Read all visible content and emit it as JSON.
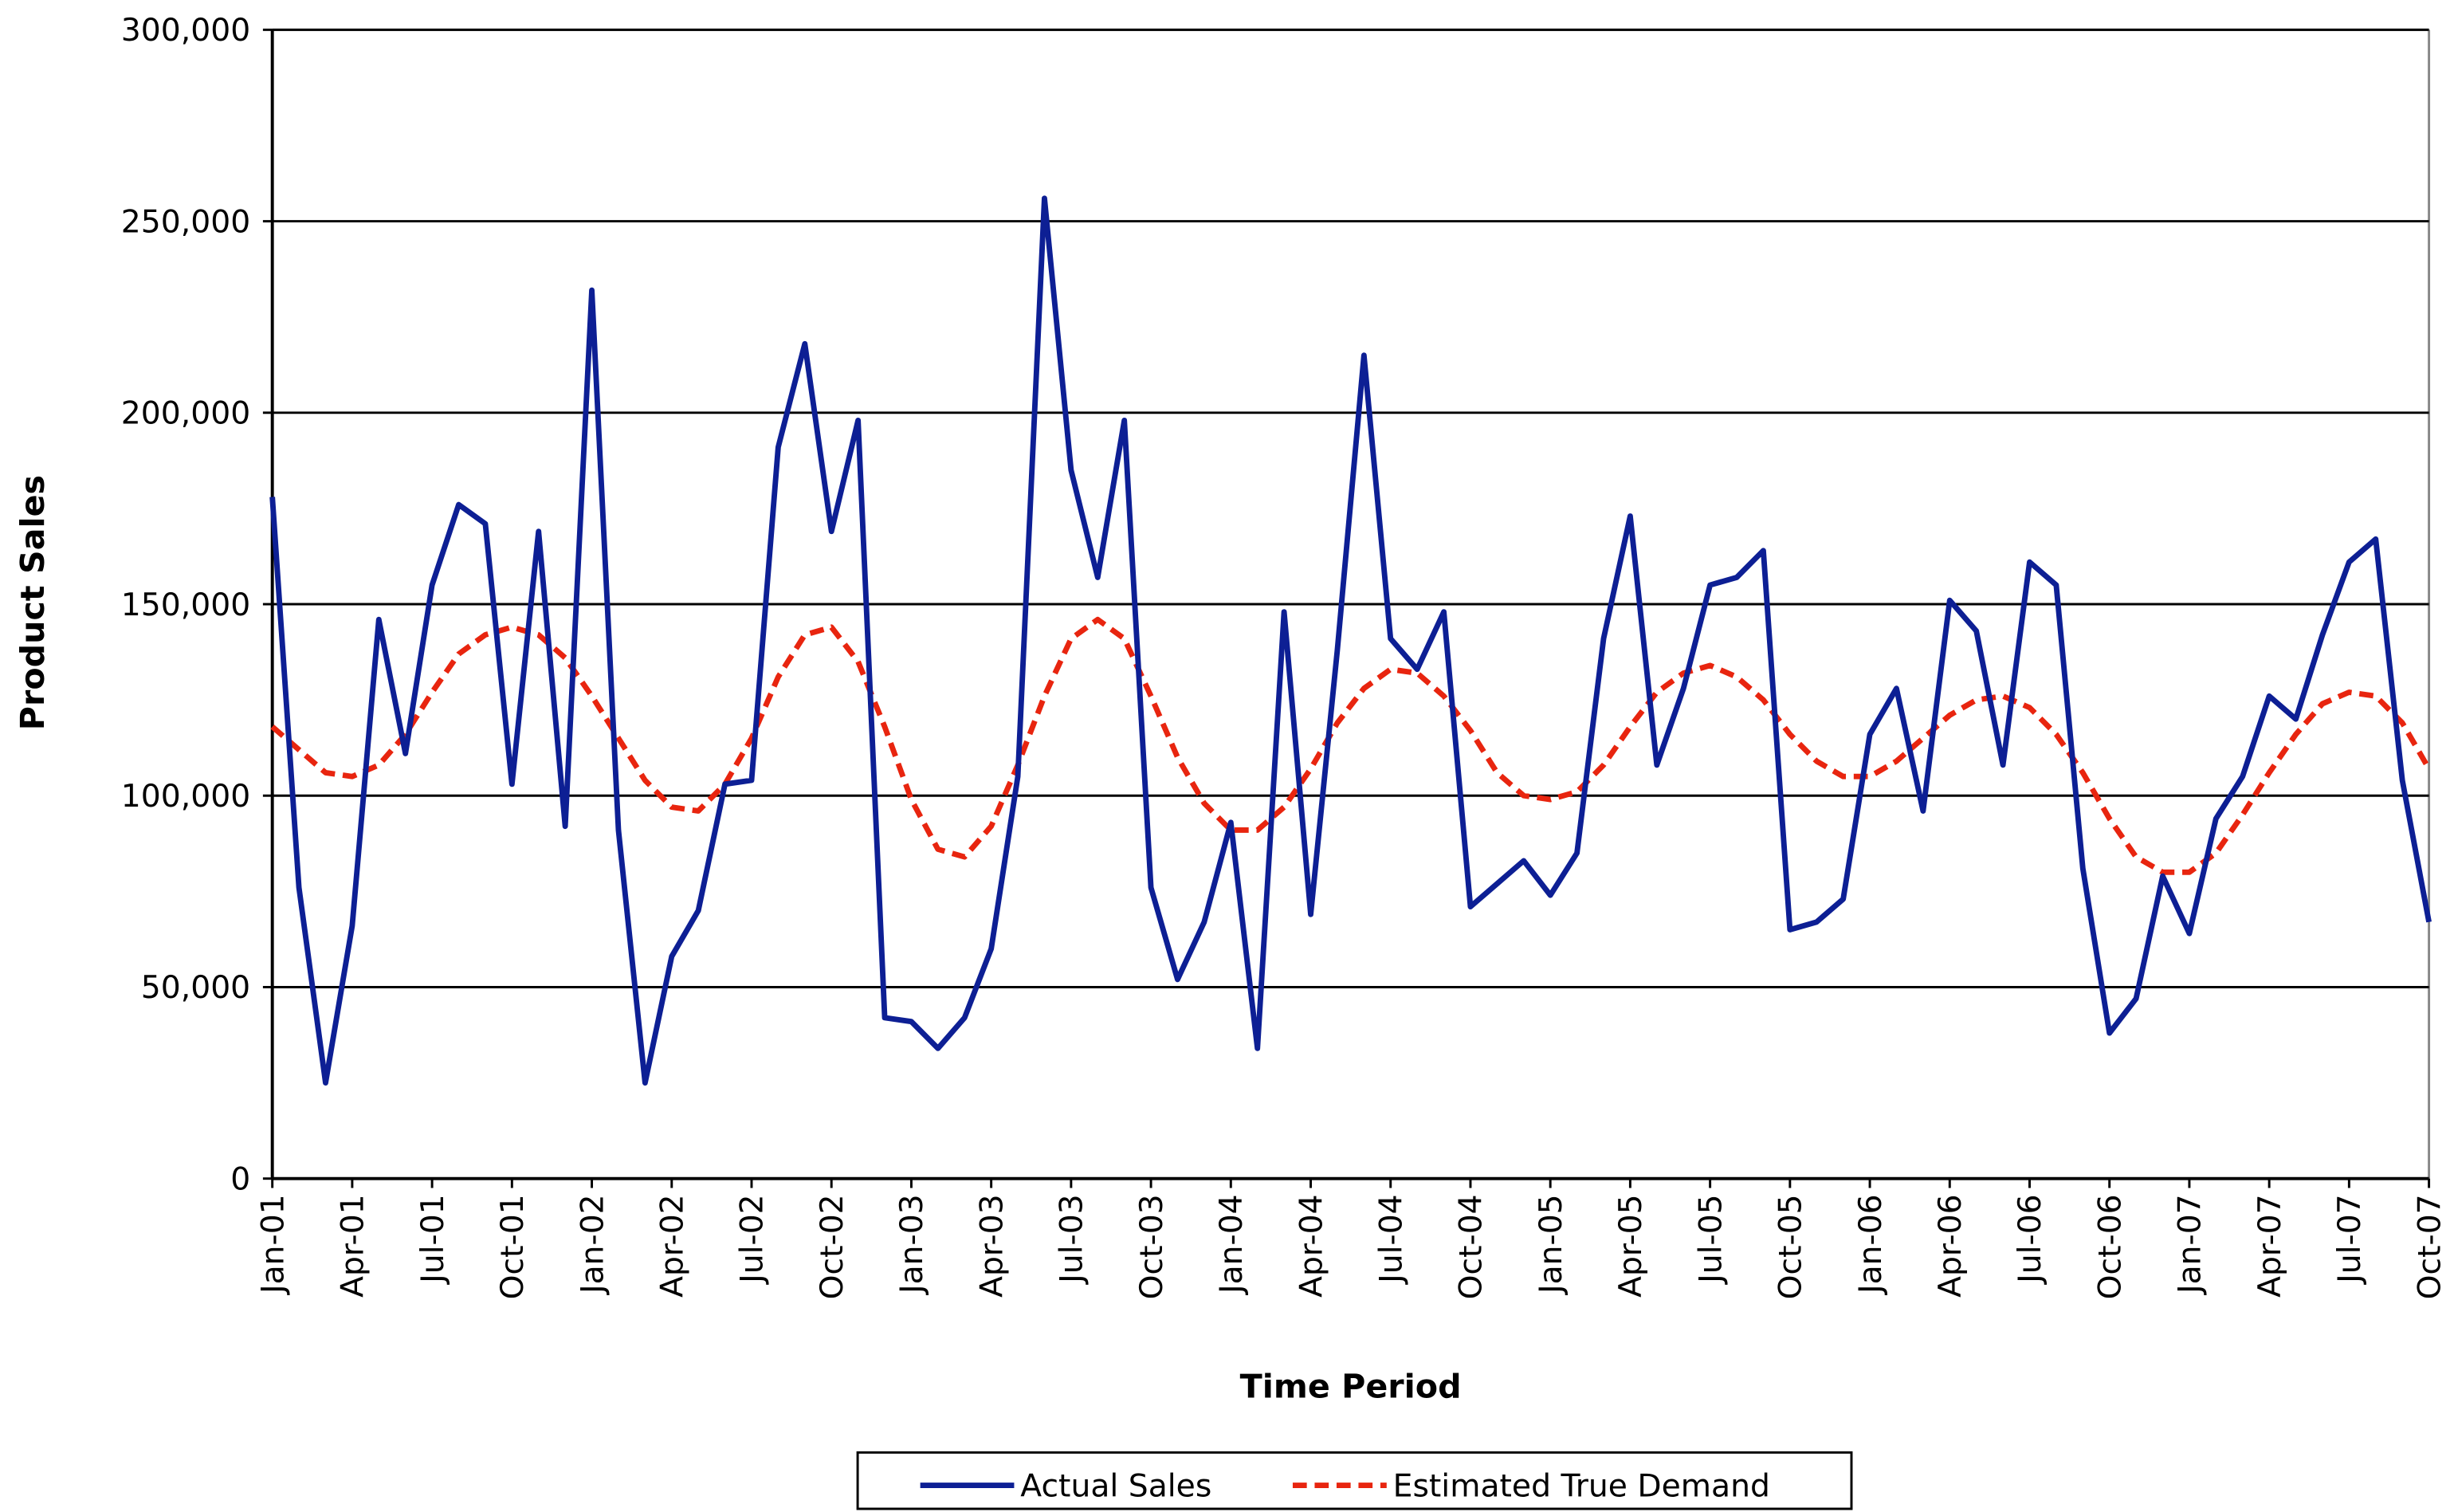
{
  "chart_data": {
    "type": "line",
    "xlabel": "Time Period",
    "ylabel": "Product Sales",
    "categories": [
      "Jan-01",
      null,
      null,
      "Apr-01",
      null,
      null,
      "Jul-01",
      null,
      null,
      "Oct-01",
      null,
      null,
      "Jan-02",
      null,
      null,
      "Apr-02",
      null,
      null,
      "Jul-02",
      null,
      null,
      "Oct-02",
      null,
      null,
      "Jan-03",
      null,
      null,
      "Apr-03",
      null,
      null,
      "Jul-03",
      null,
      null,
      "Oct-03",
      null,
      null,
      "Jan-04",
      null,
      null,
      "Apr-04",
      null,
      null,
      "Jul-04",
      null,
      null,
      "Oct-04",
      null,
      null,
      "Jan-05",
      null,
      null,
      "Apr-05",
      null,
      null,
      "Jul-05",
      null,
      null,
      "Oct-05",
      null,
      null,
      "Jan-06",
      null,
      null,
      "Apr-06",
      null,
      null,
      "Jul-06",
      null,
      null,
      "Oct-06",
      null,
      null,
      "Jan-07",
      null,
      null,
      "Apr-07",
      null,
      null,
      "Jul-07",
      null,
      null,
      "Oct-07"
    ],
    "series": [
      {
        "name": "Actual Sales",
        "color": "#0d1f94",
        "dash": false,
        "values": [
          178000,
          76000,
          25000,
          66000,
          146000,
          111000,
          155000,
          176000,
          171000,
          103000,
          169000,
          92000,
          232000,
          91000,
          25000,
          58000,
          70000,
          103000,
          104000,
          191000,
          218000,
          169000,
          198000,
          42000,
          41000,
          34000,
          42000,
          60000,
          105000,
          256000,
          185000,
          157000,
          198000,
          76000,
          52000,
          67000,
          93000,
          34000,
          148000,
          69000,
          138000,
          215000,
          141000,
          133000,
          148000,
          71000,
          77000,
          83000,
          74000,
          85000,
          141000,
          173000,
          108000,
          128000,
          155000,
          157000,
          164000,
          65000,
          67000,
          73000,
          116000,
          128000,
          96000,
          151000,
          143000,
          108000,
          161000,
          155000,
          81000,
          38000,
          47000,
          79000,
          64000,
          94000,
          105000,
          126000,
          120000,
          142000,
          161000,
          167000,
          104000,
          67000
        ]
      },
      {
        "name": "Estimated True Demand",
        "color": "#e8250f",
        "dash": true,
        "values": [
          118000,
          112000,
          106000,
          105000,
          108000,
          116000,
          127000,
          137000,
          142000,
          144000,
          142000,
          136000,
          126000,
          115000,
          104000,
          97000,
          96000,
          103000,
          115000,
          131000,
          142000,
          144000,
          135000,
          118000,
          99000,
          86000,
          84000,
          92000,
          108000,
          126000,
          141000,
          146000,
          141000,
          126000,
          110000,
          98000,
          91000,
          91000,
          97000,
          107000,
          119000,
          128000,
          133000,
          132000,
          126000,
          117000,
          106000,
          100000,
          99000,
          101000,
          108000,
          118000,
          127000,
          132000,
          134000,
          131000,
          125000,
          116000,
          109000,
          105000,
          105000,
          109000,
          115000,
          121000,
          125000,
          126000,
          123000,
          116000,
          106000,
          94000,
          84000,
          80000,
          80000,
          85000,
          95000,
          106000,
          116000,
          124000,
          127000,
          126000,
          119000,
          107000
        ]
      }
    ],
    "ylim": [
      0,
      300000
    ],
    "yticks": [
      0,
      {
        "value": 50000,
        "label": "50,000"
      },
      {
        "value": 100000,
        "label": "100,000"
      },
      {
        "value": 150000,
        "label": "150,000"
      },
      {
        "value": 200000,
        "label": "200,000"
      },
      {
        "value": 250000,
        "label": "250,000"
      },
      {
        "value": 300000,
        "label": "300,000"
      }
    ],
    "grid": true,
    "legend": "bottom"
  }
}
